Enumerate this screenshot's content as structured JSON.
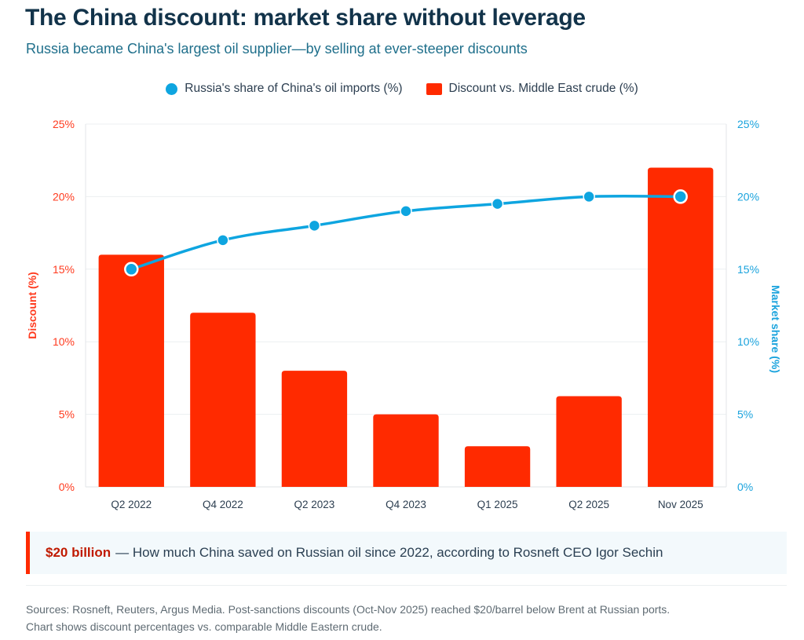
{
  "header": {
    "title": "The China discount: market share without leverage",
    "subtitle": "Russia became China's largest oil supplier—by selling at ever-steeper discounts"
  },
  "colors": {
    "bar": "#ff2a00",
    "line": "#0ea5e0",
    "left_axis": "#ff3b1f",
    "right_axis": "#1aa3dd",
    "grid": "#eceff1",
    "tick_text": "#2c3e50"
  },
  "callout": {
    "highlight": "$20 billion",
    "text": "— How much China saved on Russian oil since 2022, according to Rosneft CEO Igor Sechin"
  },
  "footer": {
    "sources_line1": "Sources: Rosneft, Reuters, Argus Media. Post-sanctions discounts (Oct-Nov 2025) reached $20/barrel below Brent at Russian ports.",
    "sources_line2": "Chart shows discount percentages vs. comparable Middle Eastern crude."
  },
  "chart_data": {
    "type": "bar",
    "title": "The China discount: market share without leverage",
    "categories": [
      "Q2 2022",
      "Q4 2022",
      "Q2 2023",
      "Q4 2023",
      "Q1 2025",
      "Q2 2025",
      "Nov 2025"
    ],
    "series": [
      {
        "name": "Discount vs. Middle East crude (%)",
        "type": "bar",
        "axis": "left",
        "values": [
          16,
          12,
          8,
          5,
          2.8,
          6.25,
          22
        ]
      },
      {
        "name": "Russia's share of China's oil imports (%)",
        "type": "line",
        "axis": "right",
        "values": [
          15,
          17,
          18,
          19,
          19.5,
          20,
          20
        ]
      }
    ],
    "ylabel": "Discount (%)",
    "ylabel_right": "Market share (%)",
    "ylim": [
      0,
      25
    ],
    "ylim_right": [
      0,
      25
    ],
    "yticks": [
      "0%",
      "5%",
      "10%",
      "15%",
      "20%",
      "25%"
    ],
    "yticks_right": [
      "0%",
      "5%",
      "10%",
      "15%",
      "20%",
      "25%"
    ],
    "grid": true,
    "legend": "top-center"
  }
}
